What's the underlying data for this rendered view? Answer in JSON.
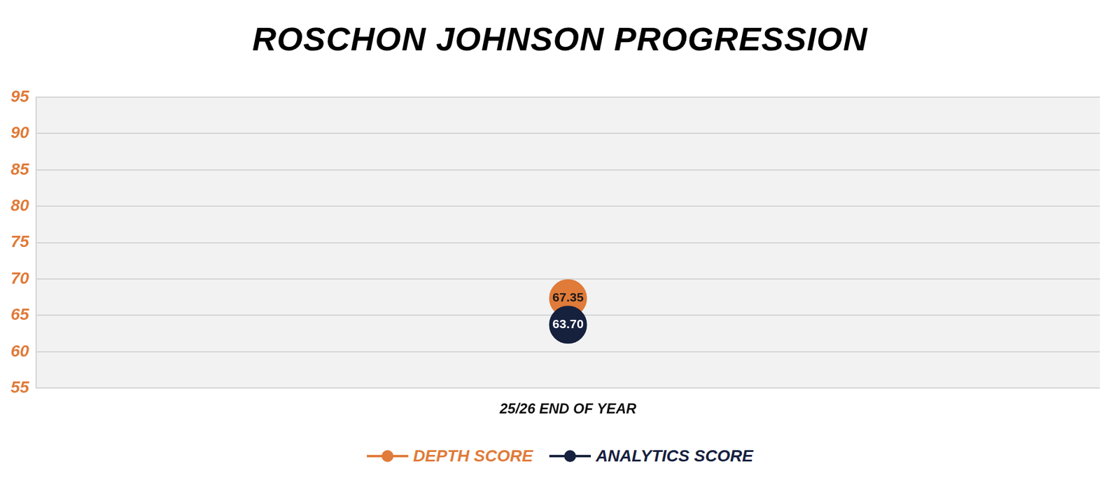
{
  "chart_data": {
    "type": "line",
    "title": "ROSCHON JOHNSON PROGRESSION",
    "categories": [
      "25/26 END OF YEAR"
    ],
    "series": [
      {
        "name": "DEPTH SCORE",
        "color": "#e07b39",
        "values": [
          67.35
        ],
        "marker": "circle"
      },
      {
        "name": "ANALYTICS SCORE",
        "color": "#16213e",
        "values": [
          63.7
        ],
        "value_labels": [
          "63.70"
        ],
        "marker": "circle"
      }
    ],
    "ylim": [
      55,
      95
    ],
    "yticks": [
      55,
      60,
      65,
      70,
      75,
      80,
      85,
      90,
      95
    ],
    "grid": true,
    "legend": "bottom",
    "data_labels": true
  }
}
